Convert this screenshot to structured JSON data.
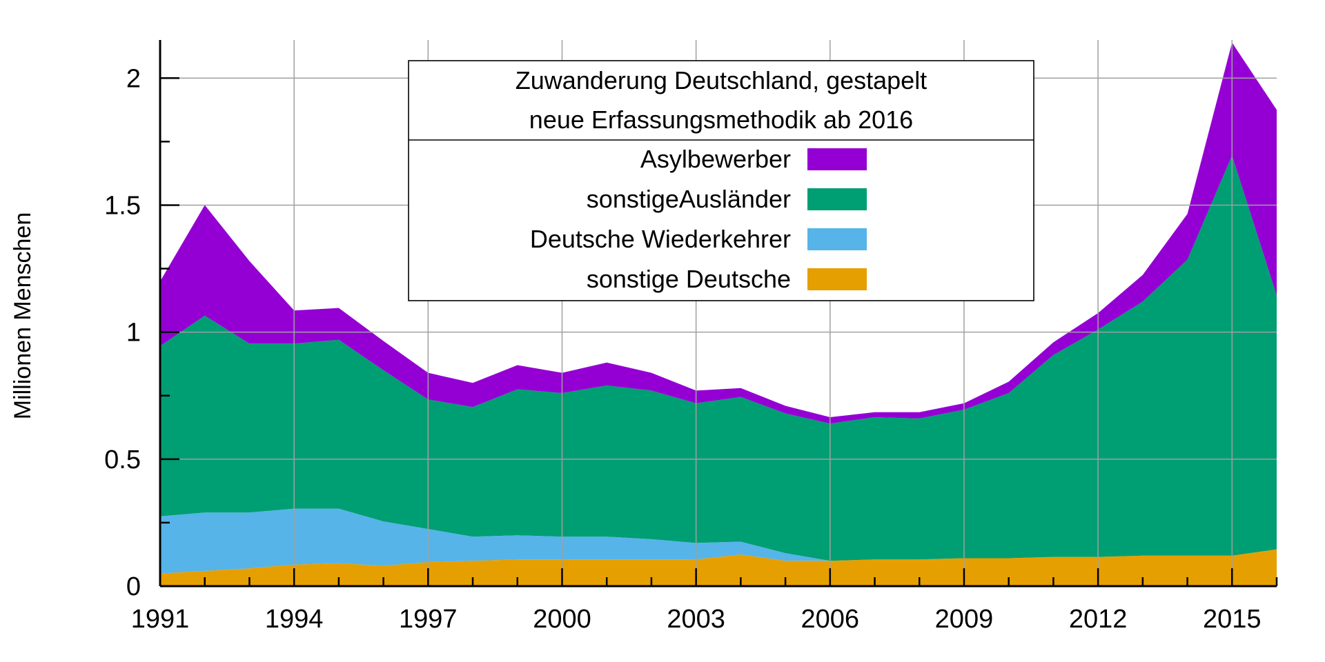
{
  "chart_data": {
    "type": "area",
    "stacked": true,
    "title_lines": [
      "Zuwanderung Deutschland, gestapelt",
      "neue Erfassungsmethodik ab 2016"
    ],
    "ylabel": "Millionen Menschen",
    "xlabel": "",
    "xlim": [
      1991,
      2016
    ],
    "ylim": [
      0,
      2.15
    ],
    "x_ticks": [
      "1991",
      "1994",
      "1997",
      "2000",
      "2003",
      "2006",
      "2009",
      "2012",
      "2015"
    ],
    "y_ticks": [
      "0",
      "0.5",
      "1",
      "1.5",
      "2"
    ],
    "grid": true,
    "legend_position": "top-center",
    "x": [
      1991,
      1992,
      1993,
      1994,
      1995,
      1996,
      1997,
      1998,
      1999,
      2000,
      2001,
      2002,
      2003,
      2004,
      2005,
      2006,
      2007,
      2008,
      2009,
      2010,
      2011,
      2012,
      2013,
      2014,
      2015,
      2016
    ],
    "series": [
      {
        "name": "sonstige Deutsche",
        "color": "#e69f00",
        "values": [
          0.05,
          0.06,
          0.07,
          0.085,
          0.09,
          0.08,
          0.095,
          0.1,
          0.105,
          0.105,
          0.105,
          0.105,
          0.105,
          0.125,
          0.1,
          0.1,
          0.105,
          0.105,
          0.11,
          0.11,
          0.115,
          0.115,
          0.12,
          0.12,
          0.12,
          0.145
        ]
      },
      {
        "name": "Deutsche Wiederkehrer",
        "color": "#56b4e9",
        "values": [
          0.225,
          0.23,
          0.22,
          0.22,
          0.215,
          0.175,
          0.13,
          0.095,
          0.095,
          0.09,
          0.09,
          0.08,
          0.065,
          0.05,
          0.03,
          0.0,
          0.0,
          0.0,
          0.0,
          0.0,
          0.0,
          0.0,
          0.0,
          0.0,
          0.0,
          0.0
        ]
      },
      {
        "name": "sonstigeAusländer",
        "color": "#009e73",
        "values": [
          0.67,
          0.775,
          0.665,
          0.65,
          0.665,
          0.595,
          0.51,
          0.51,
          0.575,
          0.565,
          0.595,
          0.585,
          0.55,
          0.57,
          0.55,
          0.54,
          0.56,
          0.555,
          0.585,
          0.65,
          0.795,
          0.895,
          1.0,
          1.165,
          1.575,
          1.0
        ]
      },
      {
        "name": "Asylbewerber",
        "color": "#9400d3",
        "values": [
          0.255,
          0.435,
          0.325,
          0.13,
          0.125,
          0.115,
          0.105,
          0.095,
          0.095,
          0.08,
          0.09,
          0.07,
          0.05,
          0.035,
          0.03,
          0.025,
          0.02,
          0.025,
          0.025,
          0.045,
          0.05,
          0.065,
          0.105,
          0.18,
          0.445,
          0.73
        ]
      }
    ],
    "legend_order": [
      "Asylbewerber",
      "sonstigeAusländer",
      "Deutsche Wiederkehrer",
      "sonstige Deutsche"
    ]
  }
}
